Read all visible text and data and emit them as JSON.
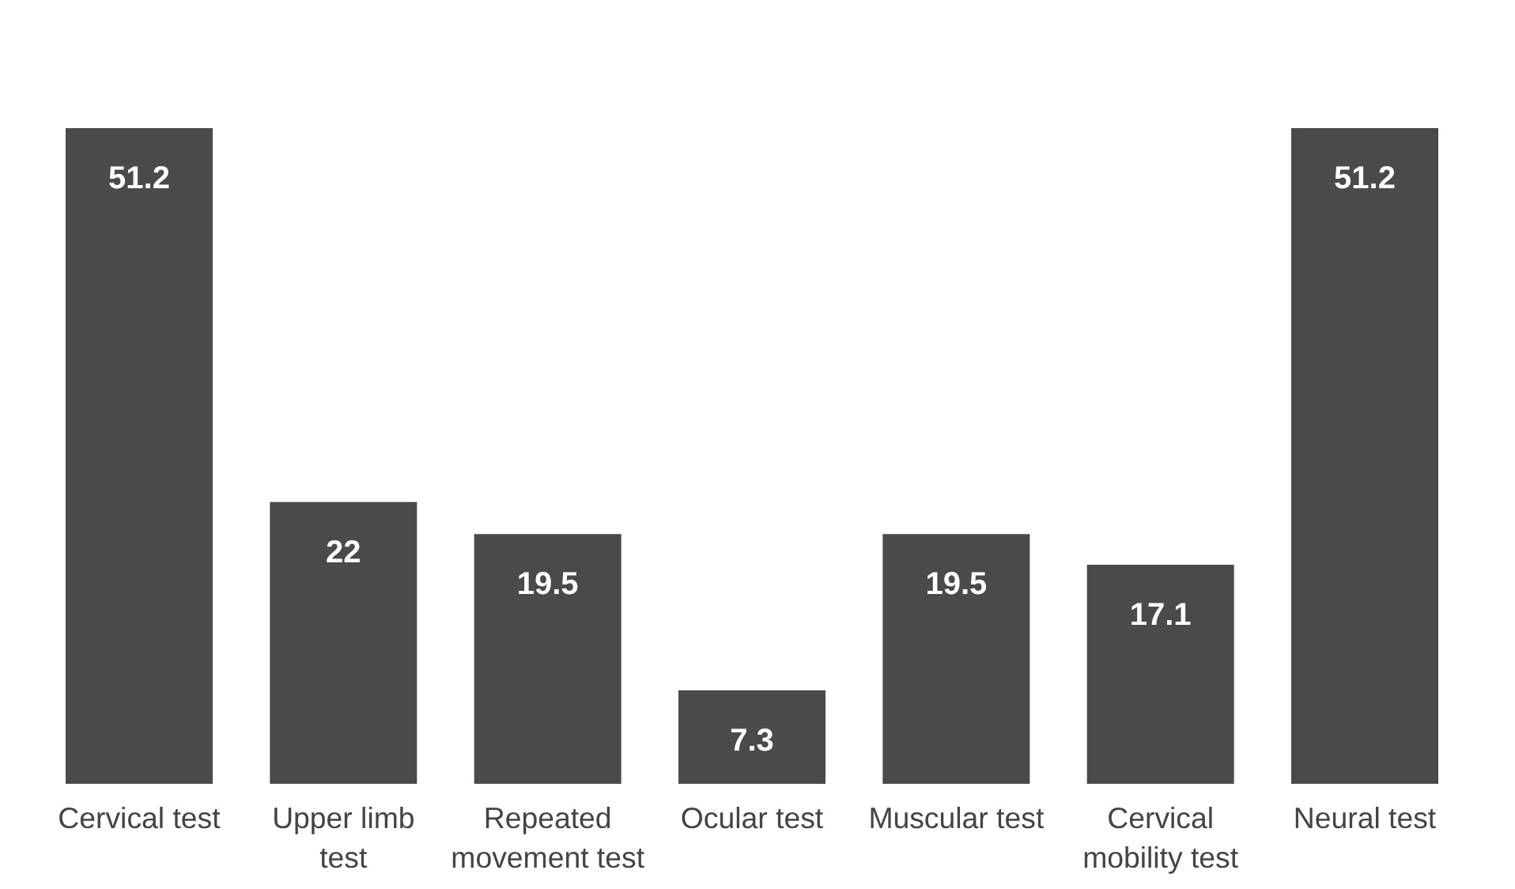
{
  "chart_data": {
    "type": "bar",
    "categories": [
      "Cervical test",
      "Upper limb test",
      "Repeated movement test",
      "Ocular test",
      "Muscular test",
      "Cervical mobility test",
      "Neural test"
    ],
    "values": [
      51.2,
      22,
      19.5,
      7.3,
      19.5,
      17.1,
      51.2
    ],
    "color": "#4a4a4a",
    "data_labels": true
  }
}
